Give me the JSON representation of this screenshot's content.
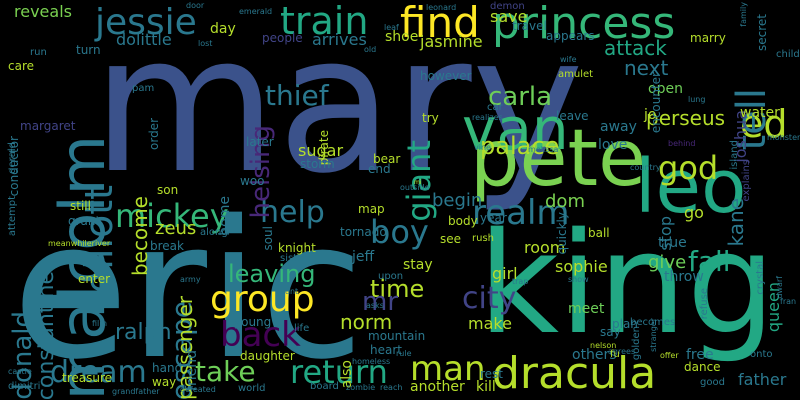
{
  "background_color": "#000000",
  "palette": {
    "dark_purple": "#440154",
    "indigo": "#414487",
    "blue": "#2a788e",
    "teal": "#22a884",
    "green": "#7ad151",
    "yellow": "#fde725"
  },
  "words": [
    {
      "text": "mary",
      "color": "#3b528b",
      "vertical": false
    },
    {
      "text": "eric",
      "color": "#2a788e",
      "vertical": false
    },
    {
      "text": "king",
      "color": "#22a884",
      "vertical": false
    },
    {
      "text": "pete",
      "color": "#7ad151",
      "vertical": false
    },
    {
      "text": "malcolm",
      "color": "#2a788e",
      "vertical": true
    },
    {
      "text": "princess",
      "color": "#35b779",
      "vertical": false
    },
    {
      "text": "dracula",
      "color": "#b5de2b",
      "vertical": false
    },
    {
      "text": "find",
      "color": "#fde725",
      "vertical": false
    },
    {
      "text": "train",
      "color": "#22a884",
      "vertical": false
    },
    {
      "text": "jessie",
      "color": "#2a788e",
      "vertical": false
    },
    {
      "text": "leo",
      "color": "#22a884",
      "vertical": false
    },
    {
      "text": "van",
      "color": "#35b779",
      "vertical": false
    },
    {
      "text": "elliott",
      "color": "#2a788e",
      "vertical": true
    },
    {
      "text": "mickey",
      "color": "#35b779",
      "vertical": false
    },
    {
      "text": "group",
      "color": "#fde725",
      "vertical": false
    },
    {
      "text": "take",
      "color": "#6ece58",
      "vertical": false
    },
    {
      "text": "return",
      "color": "#22a884",
      "vertical": false
    },
    {
      "text": "man",
      "color": "#b5de2b",
      "vertical": false
    },
    {
      "text": "back",
      "color": "#440154",
      "vertical": false
    },
    {
      "text": "help",
      "color": "#2a788e",
      "vertical": false
    },
    {
      "text": "realm",
      "color": "#2a788e",
      "vertical": false
    },
    {
      "text": "boy",
      "color": "#2a788e",
      "vertical": false
    },
    {
      "text": "city",
      "color": "#414487",
      "vertical": false
    },
    {
      "text": "escape",
      "color": "#2a788e",
      "vertical": true
    },
    {
      "text": "dream",
      "color": "#2a788e",
      "vertical": false
    },
    {
      "text": "giant",
      "color": "#22a884",
      "vertical": true
    },
    {
      "text": "carla",
      "color": "#6ece58",
      "vertical": false
    },
    {
      "text": "palace",
      "color": "#b5de2b",
      "vertical": false
    },
    {
      "text": "thief",
      "color": "#2a788e",
      "vertical": false
    },
    {
      "text": "helsing",
      "color": "#482878",
      "vertical": true
    },
    {
      "text": "god",
      "color": "#b5de2b",
      "vertical": false
    },
    {
      "text": "ed",
      "color": "#b5de2b",
      "vertical": false
    },
    {
      "text": "tell",
      "color": "#2a788e",
      "vertical": true
    },
    {
      "text": "fall",
      "color": "#22a884",
      "vertical": false
    },
    {
      "text": "donald",
      "color": "#2a788e",
      "vertical": true
    },
    {
      "text": "constantine",
      "color": "#2a788e",
      "vertical": true
    },
    {
      "text": "leaving",
      "color": "#35b779",
      "vertical": false
    },
    {
      "text": "time",
      "color": "#b5de2b",
      "vertical": false
    },
    {
      "text": "norm",
      "color": "#b5de2b",
      "vertical": false
    },
    {
      "text": "mr",
      "color": "#414487",
      "vertical": false
    },
    {
      "text": "ralph",
      "color": "#2a788e",
      "vertical": false
    },
    {
      "text": "passenger",
      "color": "#b5de2b",
      "vertical": true
    },
    {
      "text": "become",
      "color": "#b5de2b",
      "vertical": true
    },
    {
      "text": "attack",
      "color": "#22a884",
      "vertical": false
    },
    {
      "text": "next",
      "color": "#2a788e",
      "vertical": false
    },
    {
      "text": "perseus",
      "color": "#b5de2b",
      "vertical": false
    },
    {
      "text": "joshua",
      "color": "#414487",
      "vertical": true
    },
    {
      "text": "kane",
      "color": "#2a788e",
      "vertical": true
    },
    {
      "text": "queen",
      "color": "#22a884",
      "vertical": true
    },
    {
      "text": "father",
      "color": "#2a788e",
      "vertical": false
    },
    {
      "text": "sophie",
      "color": "#b5de2b",
      "vertical": false
    },
    {
      "text": "girl",
      "color": "#b5de2b",
      "vertical": false
    },
    {
      "text": "room",
      "color": "#b5de2b",
      "vertical": false
    },
    {
      "text": "make",
      "color": "#b5de2b",
      "vertical": false
    },
    {
      "text": "meet",
      "color": "#6ece58",
      "vertical": false
    },
    {
      "text": "give",
      "color": "#6ece58",
      "vertical": false
    },
    {
      "text": "dom",
      "color": "#7ad151",
      "vertical": false
    },
    {
      "text": "sugar",
      "color": "#b5de2b",
      "vertical": false
    },
    {
      "text": "begin",
      "color": "#2a788e",
      "vertical": false
    },
    {
      "text": "zeus",
      "color": "#b5de2b",
      "vertical": false
    },
    {
      "text": "save",
      "color": "#b5de2b",
      "vertical": false
    },
    {
      "text": "arrives",
      "color": "#2a788e",
      "vertical": false
    },
    {
      "text": "jasmine",
      "color": "#b5de2b",
      "vertical": false
    },
    {
      "text": "dolittle",
      "color": "#2a788e",
      "vertical": false
    },
    {
      "text": "reveals",
      "color": "#7ad151",
      "vertical": false
    },
    {
      "text": "day",
      "color": "#b5de2b",
      "vertical": false
    },
    {
      "text": "shoe",
      "color": "#b5de2b",
      "vertical": false
    },
    {
      "text": "people",
      "color": "#414487",
      "vertical": false
    },
    {
      "text": "travel",
      "color": "#2a788e",
      "vertical": false
    },
    {
      "text": "appears",
      "color": "#2a788e",
      "vertical": false
    },
    {
      "text": "marry",
      "color": "#b5de2b",
      "vertical": false
    },
    {
      "text": "open",
      "color": "#6ece58",
      "vertical": false
    },
    {
      "text": "love",
      "color": "#2a788e",
      "vertical": false
    },
    {
      "text": "away",
      "color": "#2a788e",
      "vertical": false
    },
    {
      "text": "jo",
      "color": "#b5de2b",
      "vertical": false
    },
    {
      "text": "water",
      "color": "#b5de2b",
      "vertical": false
    },
    {
      "text": "leave",
      "color": "#2a788e",
      "vertical": false
    },
    {
      "text": "go",
      "color": "#b5de2b",
      "vertical": false
    },
    {
      "text": "stop",
      "color": "#2a788e",
      "vertical": true
    },
    {
      "text": "true",
      "color": "#2a788e",
      "vertical": false
    },
    {
      "text": "throw",
      "color": "#2a788e",
      "vertical": false
    },
    {
      "text": "free",
      "color": "#2a788e",
      "vertical": false
    },
    {
      "text": "others",
      "color": "#2a788e",
      "vertical": false
    },
    {
      "text": "plan",
      "color": "#2a788e",
      "vertical": false
    },
    {
      "text": "say",
      "color": "#2a788e",
      "vertical": false
    },
    {
      "text": "dance",
      "color": "#b5de2b",
      "vertical": false
    },
    {
      "text": "kill",
      "color": "#b5de2b",
      "vertical": false
    },
    {
      "text": "rest",
      "color": "#2a788e",
      "vertical": false
    },
    {
      "text": "another",
      "color": "#b5de2b",
      "vertical": false
    },
    {
      "text": "heart",
      "color": "#2a788e",
      "vertical": false
    },
    {
      "text": "mountain",
      "color": "#2a788e",
      "vertical": false
    },
    {
      "text": "also",
      "color": "#b5de2b",
      "vertical": true
    },
    {
      "text": "daughter",
      "color": "#b5de2b",
      "vertical": false
    },
    {
      "text": "young",
      "color": "#2a788e",
      "vertical": false
    },
    {
      "text": "friend",
      "color": "#2a788e",
      "vertical": true
    },
    {
      "text": "hand",
      "color": "#2a788e",
      "vertical": false
    },
    {
      "text": "way",
      "color": "#b5de2b",
      "vertical": false
    },
    {
      "text": "treasure",
      "color": "#b5de2b",
      "vertical": false
    },
    {
      "text": "enter",
      "color": "#b5de2b",
      "vertical": false
    },
    {
      "text": "break",
      "color": "#2a788e",
      "vertical": false
    },
    {
      "text": "grant",
      "color": "#2a788e",
      "vertical": false
    },
    {
      "text": "still",
      "color": "#b5de2b",
      "vertical": false
    },
    {
      "text": "son",
      "color": "#b5de2b",
      "vertical": false
    },
    {
      "text": "home",
      "color": "#2a788e",
      "vertical": true
    },
    {
      "text": "woo",
      "color": "#2a788e",
      "vertical": false
    },
    {
      "text": "soul",
      "color": "#2a788e",
      "vertical": true
    },
    {
      "text": "tornado",
      "color": "#2a788e",
      "vertical": false
    },
    {
      "text": "knight",
      "color": "#b5de2b",
      "vertical": false
    },
    {
      "text": "jeff",
      "color": "#2a788e",
      "vertical": false
    },
    {
      "text": "stay",
      "color": "#b5de2b",
      "vertical": false
    },
    {
      "text": "see",
      "color": "#b5de2b",
      "vertical": false
    },
    {
      "text": "ball",
      "color": "#b5de2b",
      "vertical": false
    },
    {
      "text": "bear",
      "color": "#b5de2b",
      "vertical": false
    },
    {
      "text": "end",
      "color": "#2a788e",
      "vertical": false
    },
    {
      "text": "map",
      "color": "#b5de2b",
      "vertical": false
    },
    {
      "text": "body",
      "color": "#b5de2b",
      "vertical": false
    },
    {
      "text": "year",
      "color": "#2a788e",
      "vertical": false
    },
    {
      "text": "however",
      "color": "#2a788e",
      "vertical": false
    },
    {
      "text": "try",
      "color": "#b5de2b",
      "vertical": false
    },
    {
      "text": "pirate",
      "color": "#b5de2b",
      "vertical": true
    },
    {
      "text": "storm",
      "color": "#2a788e",
      "vertical": false
    },
    {
      "text": "later",
      "color": "#2a788e",
      "vertical": false
    },
    {
      "text": "order",
      "color": "#2a788e",
      "vertical": true
    },
    {
      "text": "margaret",
      "color": "#414487",
      "vertical": false
    },
    {
      "text": "turn",
      "color": "#2a788e",
      "vertical": false
    },
    {
      "text": "run",
      "color": "#2a788e",
      "vertical": false
    },
    {
      "text": "care",
      "color": "#b5de2b",
      "vertical": false
    },
    {
      "text": "conductor",
      "color": "#2a788e",
      "vertical": true
    },
    {
      "text": "attempt",
      "color": "#2a788e",
      "vertical": true
    },
    {
      "text": "gerald",
      "color": "#2a788e",
      "vertical": true
    },
    {
      "text": "demon",
      "color": "#414487",
      "vertical": false
    },
    {
      "text": "leonard",
      "color": "#2a788e",
      "vertical": false
    },
    {
      "text": "door",
      "color": "#2a788e",
      "vertical": false
    },
    {
      "text": "emerald",
      "color": "#2a788e",
      "vertical": false
    },
    {
      "text": "leaf",
      "color": "#2a788e",
      "vertical": false
    },
    {
      "text": "secret",
      "color": "#2a788e",
      "vertical": true
    },
    {
      "text": "child",
      "color": "#2a788e",
      "vertical": false
    },
    {
      "text": "encounter",
      "color": "#2a788e",
      "vertical": true
    },
    {
      "text": "amulet",
      "color": "#b5de2b",
      "vertical": false
    },
    {
      "text": "wife",
      "color": "#2a788e",
      "vertical": false
    },
    {
      "text": "lung",
      "color": "#2a788e",
      "vertical": false
    },
    {
      "text": "car",
      "color": "#2a788e",
      "vertical": false
    },
    {
      "text": "realizes",
      "color": "#2a788e",
      "vertical": false
    },
    {
      "text": "pam",
      "color": "#2a788e",
      "vertical": false
    },
    {
      "text": "old",
      "color": "#2a788e",
      "vertical": false
    },
    {
      "text": "lost",
      "color": "#2a788e",
      "vertical": false
    },
    {
      "text": "behind",
      "color": "#482878",
      "vertical": false
    },
    {
      "text": "island",
      "color": "#2a788e",
      "vertical": true
    },
    {
      "text": "monster",
      "color": "#2a788e",
      "vertical": false
    },
    {
      "text": "explains",
      "color": "#414487",
      "vertical": true
    },
    {
      "text": "vine",
      "color": "#2a788e",
      "vertical": false
    },
    {
      "text": "melissa",
      "color": "#2a788e",
      "vertical": false
    },
    {
      "text": "country",
      "color": "#2a788e",
      "vertical": false
    },
    {
      "text": "quickly",
      "color": "#2a788e",
      "vertical": true
    },
    {
      "text": "rush",
      "color": "#b5de2b",
      "vertical": false
    },
    {
      "text": "meanwhileriver",
      "color": "#b5de2b",
      "vertical": false
    },
    {
      "text": "along",
      "color": "#2a788e",
      "vertical": false
    },
    {
      "text": "sister",
      "color": "#2a788e",
      "vertical": false
    },
    {
      "text": "upon",
      "color": "#2a788e",
      "vertical": false
    },
    {
      "text": "aunt",
      "color": "#2a788e",
      "vertical": false
    },
    {
      "text": "asks",
      "color": "#2a788e",
      "vertical": false
    },
    {
      "text": "trap",
      "color": "#2a788e",
      "vertical": false
    },
    {
      "text": "show",
      "color": "#2a788e",
      "vertical": false
    },
    {
      "text": "becomes",
      "color": "#2a788e",
      "vertical": false
    },
    {
      "text": "stranger",
      "color": "#2a788e",
      "vertical": true
    },
    {
      "text": "refuse",
      "color": "#2a788e",
      "vertical": true
    },
    {
      "text": "crystal",
      "color": "#2a788e",
      "vertical": true
    },
    {
      "text": "dwarf",
      "color": "#2a788e",
      "vertical": true
    },
    {
      "text": "fran",
      "color": "#2a788e",
      "vertical": false
    },
    {
      "text": "golden",
      "color": "#2a788e",
      "vertical": true
    },
    {
      "text": "nelson",
      "color": "#b5de2b",
      "vertical": false
    },
    {
      "text": "agrees",
      "color": "#2a788e",
      "vertical": false
    },
    {
      "text": "fu",
      "color": "#b5de2b",
      "vertical": false
    },
    {
      "text": "offer",
      "color": "#b5de2b",
      "vertical": false
    },
    {
      "text": "onto",
      "color": "#2a788e",
      "vertical": false
    },
    {
      "text": "good",
      "color": "#2a788e",
      "vertical": false
    },
    {
      "text": "life",
      "color": "#2a788e",
      "vertical": false
    },
    {
      "text": "rule",
      "color": "#2a788e",
      "vertical": false
    },
    {
      "text": "homeless",
      "color": "#2a788e",
      "vertical": false
    },
    {
      "text": "board",
      "color": "#2a788e",
      "vertical": false
    },
    {
      "text": "zombie",
      "color": "#2a788e",
      "vertical": false
    },
    {
      "text": "reach",
      "color": "#2a788e",
      "vertical": false
    },
    {
      "text": "world",
      "color": "#2a788e",
      "vertical": false
    },
    {
      "text": "defeated",
      "color": "#2a788e",
      "vertical": false
    },
    {
      "text": "grandfather",
      "color": "#2a788e",
      "vertical": false
    },
    {
      "text": "dimitri",
      "color": "#2a788e",
      "vertical": false
    },
    {
      "text": "castle",
      "color": "#2a788e",
      "vertical": false
    },
    {
      "text": "film",
      "color": "#2a788e",
      "vertical": false
    },
    {
      "text": "army",
      "color": "#2a788e",
      "vertical": false
    },
    {
      "text": "family",
      "color": "#2a788e",
      "vertical": true
    },
    {
      "text": "outside",
      "color": "#2a788e",
      "vertical": false
    },
    {
      "text": "mi",
      "color": "#b5de2b",
      "vertical": false
    },
    {
      "text": "ellie",
      "color": "#2a788e",
      "vertical": false
    },
    {
      "text": "convinces",
      "color": "#2a788e",
      "vertical": true
    }
  ]
}
